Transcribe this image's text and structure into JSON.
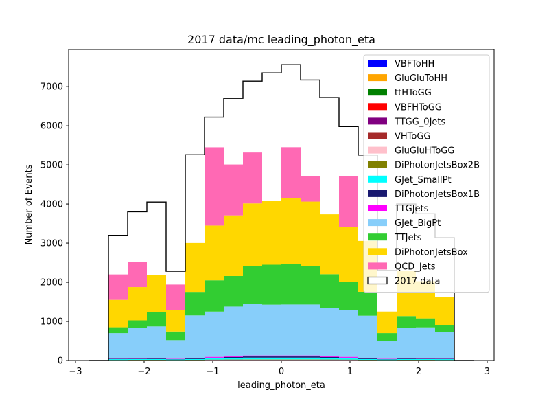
{
  "chart_data": {
    "type": "bar",
    "title": "2017 data/mc leading_photon_eta",
    "xlabel": "leading_photon_eta",
    "ylabel": "Number of Events",
    "xlim": [
      -3.1,
      3.1
    ],
    "ylim": [
      0,
      7950
    ],
    "x_ticks": [
      -3,
      -2,
      -1,
      0,
      1,
      2,
      3
    ],
    "x_tick_labels": [
      "−3",
      "−2",
      "−1",
      "0",
      "1",
      "2",
      "3"
    ],
    "y_ticks": [
      0,
      1000,
      2000,
      3000,
      4000,
      5000,
      6000,
      7000
    ],
    "y_tick_labels": [
      "0",
      "1000",
      "2000",
      "3000",
      "4000",
      "5000",
      "6000",
      "7000"
    ],
    "bin_edges": [
      -2.8,
      -2.52,
      -2.24,
      -1.96,
      -1.68,
      -1.4,
      -1.12,
      -0.84,
      -0.56,
      -0.28,
      0.0,
      0.28,
      0.56,
      0.84,
      1.12,
      1.4,
      1.68,
      1.96,
      2.24,
      2.52,
      2.8
    ],
    "stacked": true,
    "legend_position": "top-right",
    "series": [
      {
        "name": "VBFToHH",
        "color": "#0000ff",
        "values": [
          0,
          0,
          0,
          0,
          0,
          0,
          0,
          0,
          0,
          0,
          0,
          0,
          0,
          0,
          0,
          0,
          0,
          0,
          0,
          0
        ]
      },
      {
        "name": "GluGluToHH",
        "color": "#ffa500",
        "values": [
          0,
          0,
          0,
          0,
          0,
          0,
          0,
          0,
          0,
          0,
          0,
          0,
          0,
          0,
          0,
          0,
          0,
          0,
          0,
          0
        ]
      },
      {
        "name": "ttHToGG",
        "color": "#008000",
        "values": [
          0,
          2,
          3,
          3,
          2,
          3,
          4,
          5,
          5,
          5,
          5,
          5,
          5,
          4,
          3,
          2,
          3,
          3,
          2,
          0
        ]
      },
      {
        "name": "VBFHToGG",
        "color": "#ff0000",
        "values": [
          0,
          1,
          1,
          1,
          1,
          1,
          2,
          2,
          2,
          2,
          2,
          2,
          2,
          2,
          1,
          1,
          1,
          1,
          1,
          0
        ]
      },
      {
        "name": "TTGG_0Jets",
        "color": "#800080",
        "values": [
          0,
          1,
          1,
          1,
          1,
          1,
          2,
          2,
          2,
          2,
          2,
          2,
          2,
          2,
          1,
          1,
          1,
          1,
          1,
          0
        ]
      },
      {
        "name": "VHToGG",
        "color": "#a52a2a",
        "values": [
          0,
          1,
          1,
          1,
          1,
          1,
          2,
          2,
          2,
          2,
          2,
          2,
          2,
          2,
          1,
          1,
          1,
          1,
          1,
          0
        ]
      },
      {
        "name": "GluGluHToGG",
        "color": "#ffc0cb",
        "values": [
          0,
          5,
          6,
          6,
          5,
          6,
          8,
          9,
          10,
          10,
          10,
          10,
          9,
          8,
          6,
          5,
          6,
          6,
          5,
          0
        ]
      },
      {
        "name": "DiPhotonJetsBox2B",
        "color": "#808000",
        "values": [
          0,
          4,
          5,
          5,
          4,
          5,
          6,
          7,
          8,
          8,
          8,
          8,
          7,
          6,
          5,
          4,
          5,
          5,
          4,
          0
        ]
      },
      {
        "name": "GJet_SmallPt",
        "color": "#00ffff",
        "values": [
          0,
          20,
          20,
          20,
          15,
          20,
          30,
          40,
          45,
          45,
          45,
          45,
          40,
          30,
          20,
          15,
          20,
          20,
          20,
          0
        ]
      },
      {
        "name": "DiPhotonJetsBox1B",
        "color": "#191970",
        "values": [
          0,
          10,
          12,
          14,
          10,
          15,
          20,
          25,
          30,
          30,
          30,
          30,
          25,
          20,
          15,
          10,
          14,
          12,
          10,
          0
        ]
      },
      {
        "name": "TTGJets",
        "color": "#ff00ff",
        "values": [
          0,
          5,
          8,
          10,
          8,
          14,
          20,
          22,
          25,
          25,
          25,
          25,
          22,
          20,
          14,
          8,
          10,
          8,
          5,
          0
        ]
      },
      {
        "name": "GJet_BigPt",
        "color": "#87cefa",
        "values": [
          0,
          651,
          770,
          811,
          474,
          1087,
          1156,
          1265,
          1326,
          1299,
          1303,
          1303,
          1222,
          1195,
          1080,
          454,
          776,
          790,
          681,
          0
        ]
      },
      {
        "name": "TTJets",
        "color": "#32cd32",
        "values": [
          0,
          150,
          200,
          370,
          220,
          600,
          800,
          780,
          960,
          1020,
          1040,
          980,
          870,
          720,
          610,
          200,
          300,
          230,
          180,
          0
        ]
      },
      {
        "name": "DiPhotonJetsBox",
        "color": "#ffd700",
        "values": [
          0,
          700,
          850,
          950,
          550,
          1250,
          1400,
          1550,
          1600,
          1630,
          1680,
          1650,
          1530,
          1400,
          1300,
          550,
          1150,
          950,
          720,
          0
        ]
      },
      {
        "name": "QCD_Jets",
        "color": "#ff69b4",
        "values": [
          0,
          650,
          650,
          0,
          650,
          0,
          2000,
          1300,
          1300,
          0,
          1300,
          650,
          0,
          1300,
          0,
          0,
          0,
          0,
          0,
          0
        ]
      }
    ],
    "data_series": {
      "name": "2017 data",
      "values": [
        0,
        3200,
        3800,
        4050,
        2280,
        5260,
        6220,
        6700,
        7140,
        7350,
        7560,
        7170,
        6720,
        5980,
        5250,
        2300,
        4000,
        3750,
        3140,
        0
      ]
    }
  }
}
